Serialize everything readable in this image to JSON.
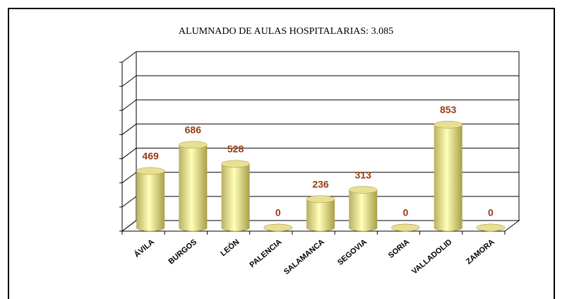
{
  "chart_data": {
    "type": "bar",
    "title": "ALUMNADO DE AULAS HOSPITALARIAS: 3.085",
    "categories": [
      "ÁVILA",
      "BURGOS",
      "LEÓN",
      "PALENCIA",
      "SALAMANCA",
      "SEGOVIA",
      "SORIA",
      "VALLADOLID",
      "ZAMORA"
    ],
    "values": [
      469,
      686,
      528,
      0,
      236,
      313,
      0,
      853,
      0
    ],
    "color": "#e8e090",
    "ylim": [
      0,
      1400
    ],
    "yticks": [
      0,
      200,
      400,
      600,
      800,
      1000,
      1200,
      1400
    ],
    "grid": true
  }
}
